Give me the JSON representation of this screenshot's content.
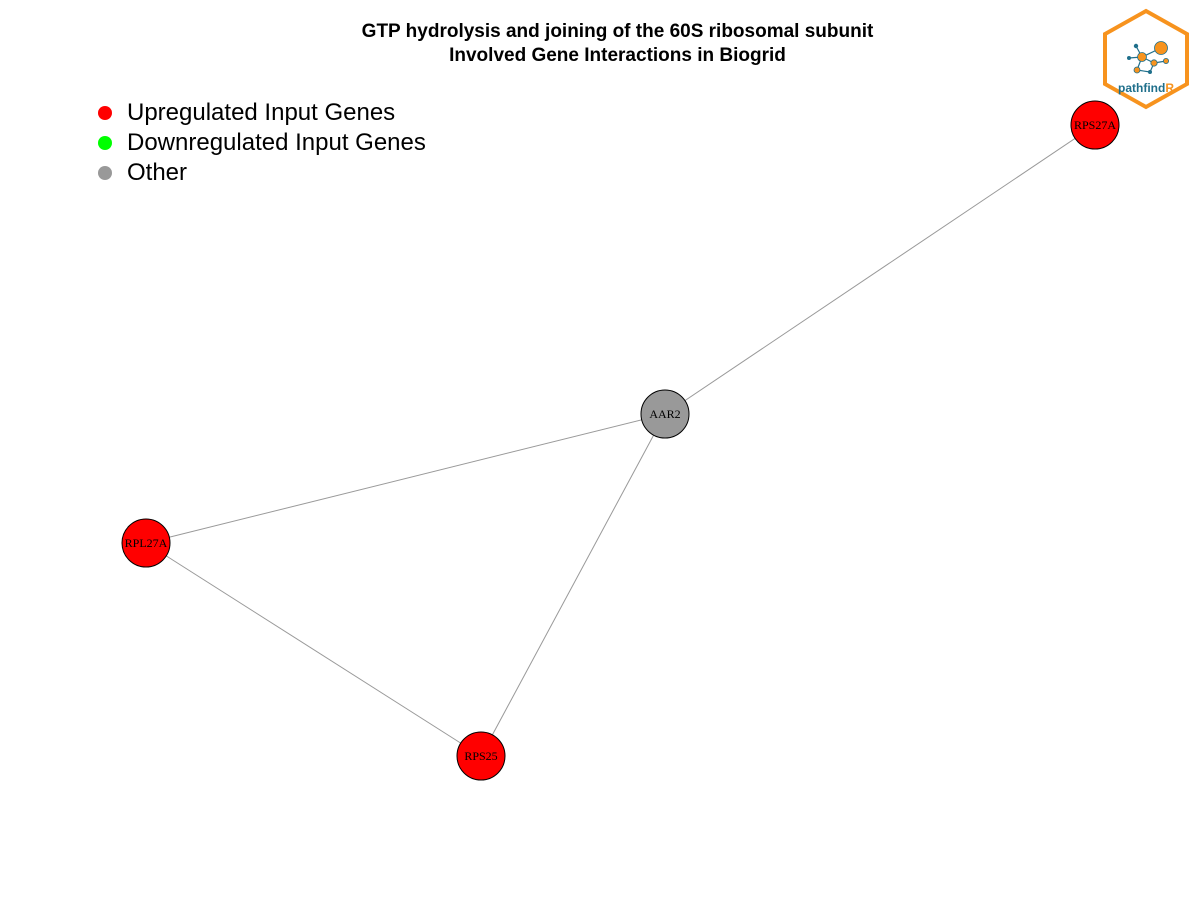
{
  "title": {
    "line1": "GTP hydrolysis and joining of the 60S ribosomal subunit",
    "line2": "Involved Gene Interactions in Biogrid"
  },
  "legend": [
    {
      "label": "Upregulated Input Genes",
      "color": "#ff0000"
    },
    {
      "label": "Downregulated Input Genes",
      "color": "#00ff00"
    },
    {
      "label": "Other",
      "color": "#999999"
    }
  ],
  "network": {
    "nodes": [
      {
        "id": "AAR2",
        "label": "AAR2",
        "category": "Other",
        "color": "#999999"
      },
      {
        "id": "RPS27A",
        "label": "RPS27A",
        "category": "Upregulated Input Genes",
        "color": "#ff0000"
      },
      {
        "id": "RPL27A",
        "label": "RPL27A",
        "category": "Upregulated Input Genes",
        "color": "#ff0000"
      },
      {
        "id": "RPS25",
        "label": "RPS25",
        "category": "Upregulated Input Genes",
        "color": "#ff0000"
      }
    ],
    "edges": [
      {
        "source": "AAR2",
        "target": "RPS27A"
      },
      {
        "source": "AAR2",
        "target": "RPL27A"
      },
      {
        "source": "AAR2",
        "target": "RPS25"
      },
      {
        "source": "RPL27A",
        "target": "RPS25"
      }
    ],
    "edge_color": "#999999",
    "node_border_color": "#000000"
  },
  "logo": {
    "text_main": "pathfind",
    "text_accent": "R",
    "color_border": "#f7931e",
    "color_text": "#1f6f8b",
    "color_accent": "#f7931e"
  }
}
